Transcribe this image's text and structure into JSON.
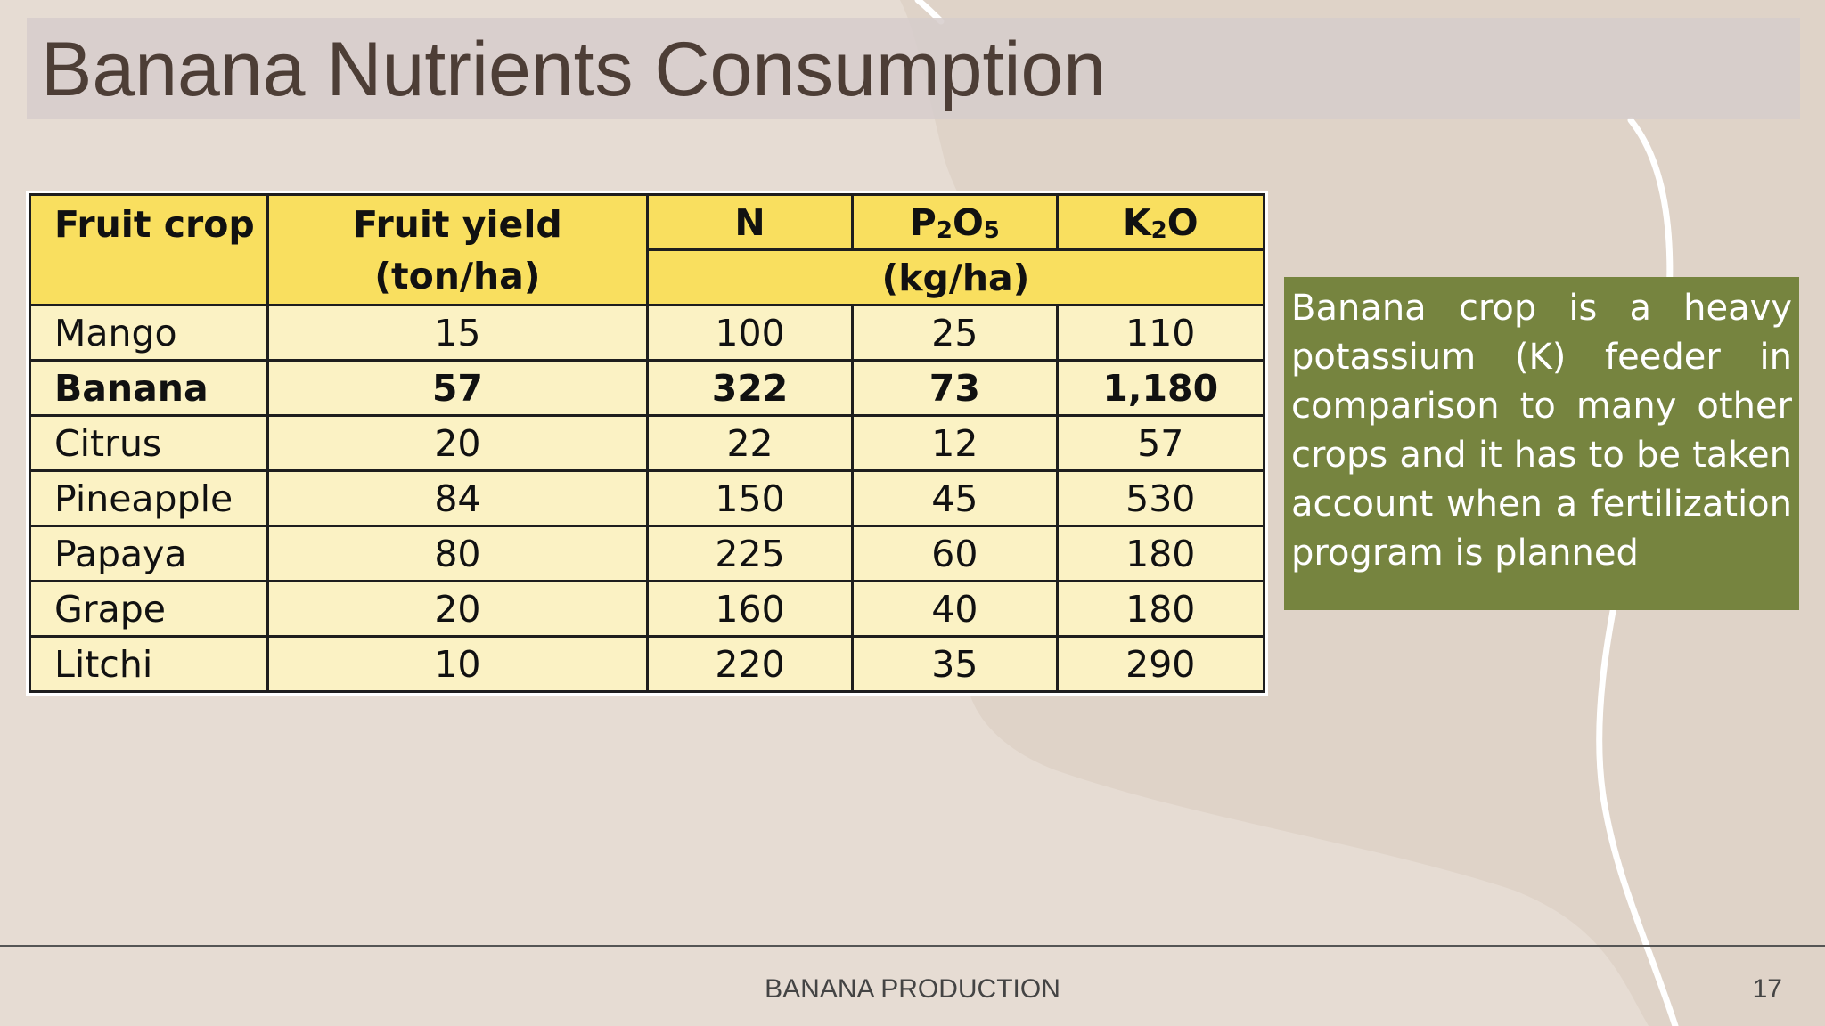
{
  "slide": {
    "title": "Banana Nutrients Consumption",
    "footer_title": "BANANA PRODUCTION",
    "page_number": "17",
    "note": "Banana crop is a heavy potassium (K) feeder in comparison to many other crops and it has to be taken account when a fertilization program is planned"
  },
  "table": {
    "headers": {
      "crop": "Fruit crop",
      "yield_line1": "Fruit yield",
      "yield_line2": "(ton/ha)",
      "n": "N",
      "p_main": "P",
      "p_sub1": "2",
      "p_mid": "O",
      "p_sub2": "5",
      "k_main": "K",
      "k_sub": "2",
      "k_end": "O",
      "unit": "(kg/ha)"
    },
    "rows": [
      {
        "crop": "Mango",
        "yield": "15",
        "n": "100",
        "p2o5": "25",
        "k2o": "110"
      },
      {
        "crop": "Banana",
        "yield": "57",
        "n": "322",
        "p2o5": "73",
        "k2o": "1,180"
      },
      {
        "crop": "Citrus",
        "yield": "20",
        "n": "22",
        "p2o5": "12",
        "k2o": "57"
      },
      {
        "crop": "Pineapple",
        "yield": "84",
        "n": "150",
        "p2o5": "45",
        "k2o": "530"
      },
      {
        "crop": "Papaya",
        "yield": "80",
        "n": "225",
        "p2o5": "60",
        "k2o": "180"
      },
      {
        "crop": "Grape",
        "yield": "20",
        "n": "160",
        "p2o5": "40",
        "k2o": "180"
      },
      {
        "crop": "Litchi",
        "yield": "10",
        "n": "220",
        "p2o5": "35",
        "k2o": "290"
      }
    ]
  },
  "colors": {
    "background": "#e6dcd3",
    "title_bar": "#d6cdcb",
    "title_text": "#4d3e36",
    "table_header": "#f9df5f",
    "table_body": "#fbf2c4",
    "note_box": "#76843f",
    "curve_line": "#ffffff"
  }
}
